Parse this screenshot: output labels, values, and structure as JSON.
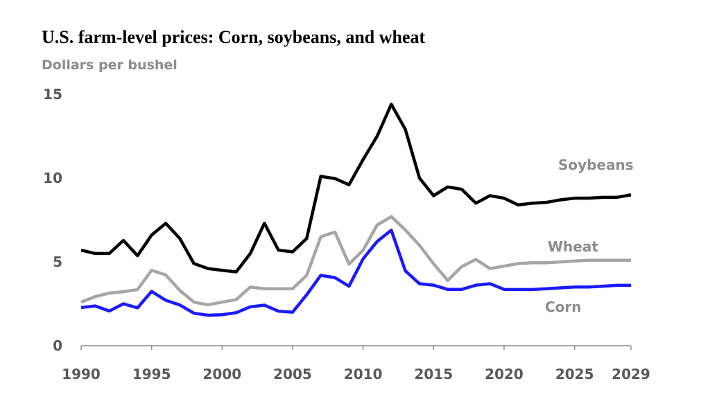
{
  "chart_data": {
    "type": "line",
    "title": "U.S. farm-level prices: Corn, soybeans, and wheat",
    "subtitle": "Dollars per bushel",
    "x": [
      1990,
      1991,
      1992,
      1993,
      1994,
      1995,
      1996,
      1997,
      1998,
      1999,
      2000,
      2001,
      2002,
      2003,
      2004,
      2005,
      2006,
      2007,
      2008,
      2009,
      2010,
      2011,
      2012,
      2013,
      2014,
      2015,
      2016,
      2017,
      2018,
      2019,
      2020,
      2021,
      2022,
      2023,
      2024,
      2025,
      2026,
      2027,
      2028,
      2029
    ],
    "xlim": [
      1990,
      2029
    ],
    "xticks": [
      1990,
      1995,
      2000,
      2005,
      2010,
      2015,
      2020,
      2025,
      2029
    ],
    "ylim": [
      0,
      15
    ],
    "yticks": [
      0,
      5,
      10,
      15
    ],
    "grid": false,
    "series": [
      {
        "name": "Soybeans",
        "color": "#000000",
        "values": [
          5.7,
          5.5,
          5.5,
          6.28,
          5.37,
          6.6,
          7.3,
          6.4,
          4.9,
          4.6,
          4.5,
          4.4,
          5.5,
          7.3,
          5.7,
          5.6,
          6.4,
          10.1,
          9.97,
          9.6,
          11.1,
          12.5,
          14.4,
          12.9,
          10.0,
          8.95,
          9.47,
          9.33,
          8.5,
          8.95,
          8.8,
          8.4,
          8.5,
          8.55,
          8.7,
          8.8,
          8.8,
          8.85,
          8.85,
          9.0
        ]
      },
      {
        "name": "Wheat",
        "color": "#a6a6a6",
        "values": [
          2.6,
          2.93,
          3.14,
          3.22,
          3.35,
          4.5,
          4.22,
          3.3,
          2.6,
          2.44,
          2.6,
          2.75,
          3.5,
          3.4,
          3.4,
          3.4,
          4.2,
          6.5,
          6.78,
          4.87,
          5.7,
          7.2,
          7.7,
          6.9,
          5.99,
          4.89,
          3.89,
          4.72,
          5.15,
          4.6,
          4.75,
          4.9,
          4.95,
          4.95,
          5.0,
          5.05,
          5.1,
          5.1,
          5.1,
          5.1
        ]
      },
      {
        "name": "Corn",
        "color": "#1a1aff",
        "values": [
          2.28,
          2.37,
          2.07,
          2.5,
          2.26,
          3.24,
          2.71,
          2.43,
          1.94,
          1.82,
          1.85,
          1.97,
          2.32,
          2.42,
          2.06,
          2.0,
          3.04,
          4.2,
          4.06,
          3.55,
          5.18,
          6.22,
          6.89,
          4.46,
          3.7,
          3.61,
          3.36,
          3.36,
          3.61,
          3.7,
          3.36,
          3.35,
          3.35,
          3.4,
          3.45,
          3.5,
          3.5,
          3.55,
          3.6,
          3.6
        ]
      }
    ]
  }
}
